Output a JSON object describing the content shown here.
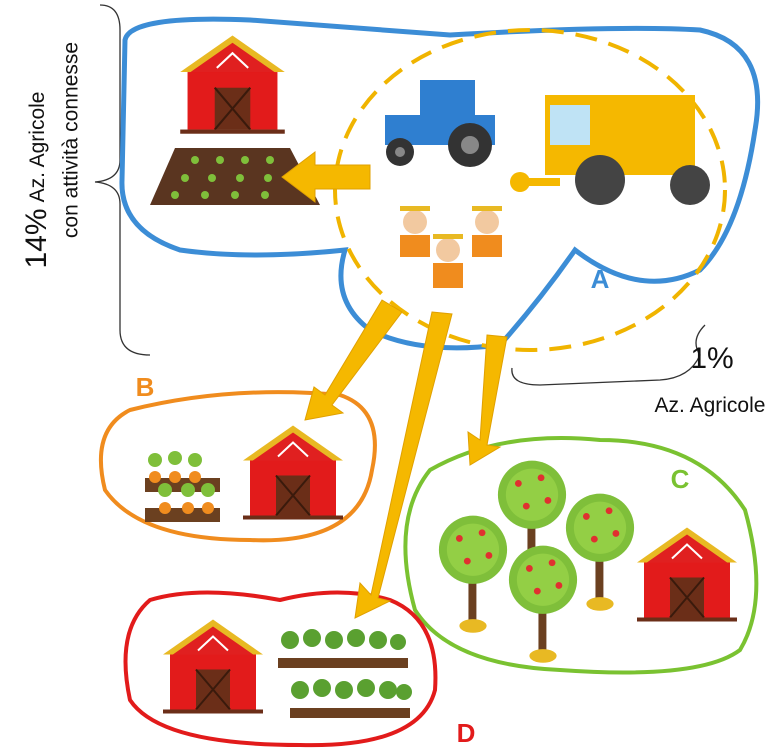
{
  "left_brace": {
    "percent": "14%",
    "line1": "Az. Agricole",
    "line2": "con attività connesse"
  },
  "right_brace": {
    "percent": "1%",
    "label": "Az. Agricole"
  },
  "groups": [
    {
      "label": "A"
    },
    {
      "label": "B"
    },
    {
      "label": "C"
    },
    {
      "label": "D"
    }
  ]
}
